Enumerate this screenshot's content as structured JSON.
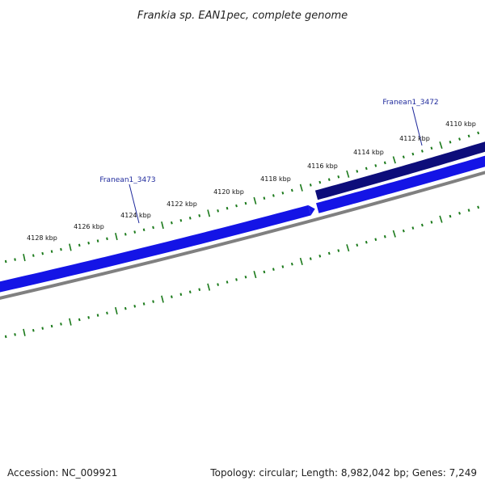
{
  "title": "Frankia sp. EAN1pec, complete genome",
  "tick_labels": [
    "4110 kbp",
    "4112 kbp",
    "4114 kbp",
    "4116 kbp",
    "4118 kbp",
    "4120 kbp",
    "4122 kbp",
    "4124 kbp",
    "4126 kbp",
    "4128 kbp"
  ],
  "genes": [
    {
      "name": "Franean1_3472",
      "strand": "reverse",
      "color": "#0d0d7a"
    },
    {
      "name": "Franean1_3473",
      "strand": "forward",
      "color": "#1414e6"
    }
  ],
  "footer": {
    "accession": "Accession: NC_009921",
    "summary": "Topology: circular; Length: 8,982,042 bp; Genes: 7,249"
  },
  "colors": {
    "backbone": "#808080",
    "ticks": "#1b7a1b",
    "gene_forward": "#1414e6",
    "gene_reverse": "#0d0d7a"
  }
}
